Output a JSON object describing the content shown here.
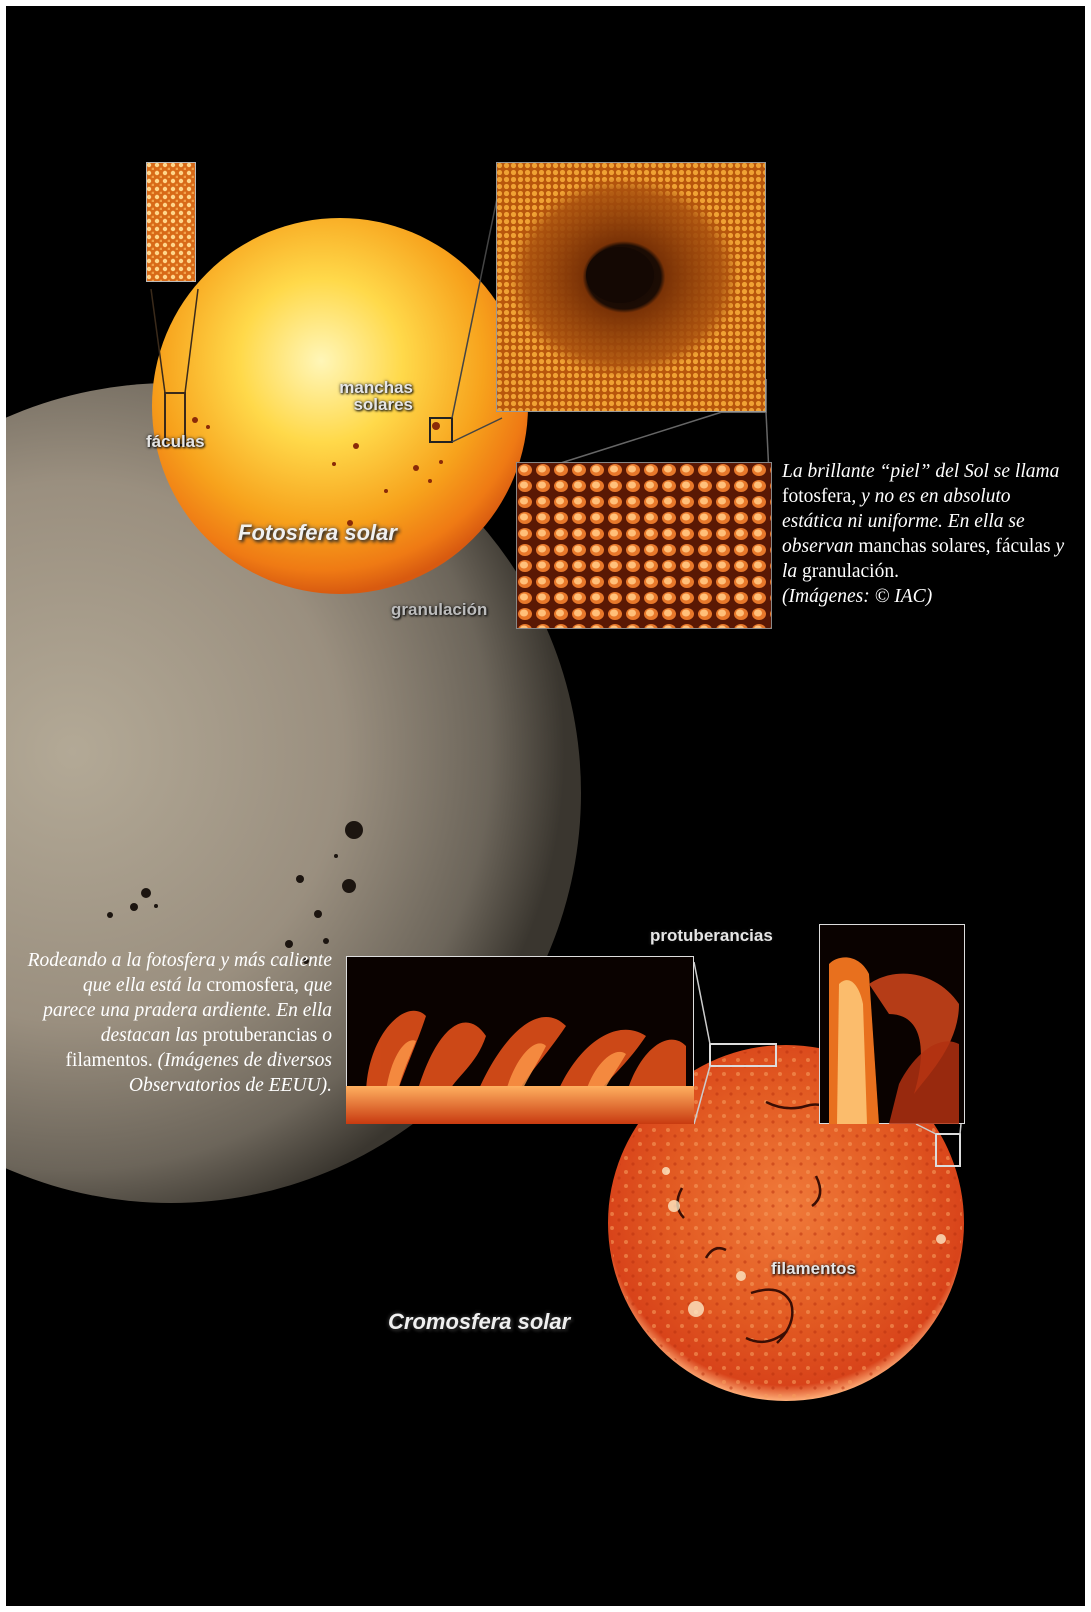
{
  "colors": {
    "background": "#000000",
    "page_border": "#ffffff",
    "photosphere": "#f6b418",
    "chromosphere": "#d9431a",
    "white_light_sun": "#8a8070"
  },
  "photosphere_figure": {
    "title": "Fotosfera solar",
    "labels": {
      "sunspots_line1": "manchas",
      "sunspots_line2": "solares",
      "faculae": "fáculas",
      "granulation": "granulación"
    }
  },
  "caption_photosphere": {
    "p1": "La brillante “piel” del Sol se llama",
    "p2": " fotosfera",
    "p3": ", y no es en absoluto estática ni uniforme. En ella se observan",
    "p4": " manchas solares, fáculas",
    "p5": " y la",
    "p6": " granulación",
    "p7": ".",
    "credit": "(Imágenes: © IAC)"
  },
  "chromosphere_figure": {
    "title": "Cromosfera solar",
    "labels": {
      "prominences": "protuberancias",
      "filaments": "filamentos"
    }
  },
  "caption_chromosphere": {
    "p1": "Rodeando a la fotosfera y más caliente que ella está la",
    "p2": " cromosfera",
    "p3": ", que parece una pradera ardiente. En ella destacan las",
    "p4": " protuberancias",
    "p5": " o",
    "p6": " filamentos",
    "p7": ". ",
    "credit": "(Imágenes de diversos Observatorios de EEUU)."
  }
}
